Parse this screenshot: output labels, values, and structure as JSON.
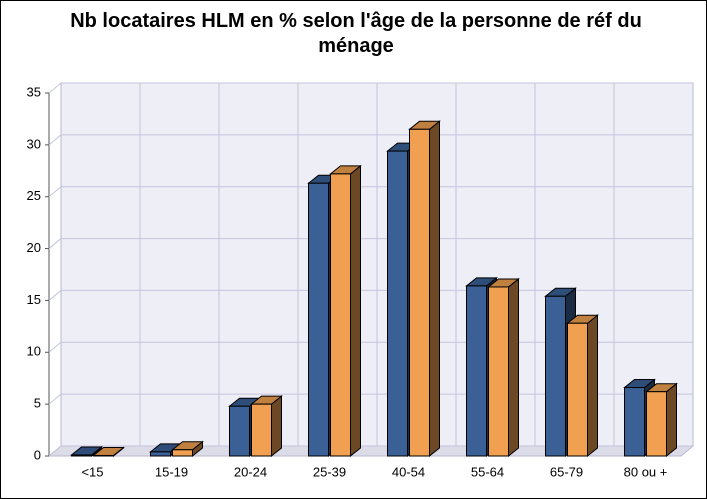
{
  "chart_data": {
    "type": "bar3d",
    "title": "Nb locataires HLM en % selon l'âge de la personne de réf du ménage",
    "categories": [
      "<15",
      "15-19",
      "20-24",
      "25-39",
      "40-54",
      "55-64",
      "65-79",
      "80 ou +"
    ],
    "series": [
      {
        "color": "#3a6096",
        "values": [
          0.1,
          0.4,
          4.8,
          26.3,
          29.4,
          16.4,
          15.4,
          6.6
        ]
      },
      {
        "color": "#f0a050",
        "values": [
          0.05,
          0.6,
          5.0,
          27.2,
          31.5,
          16.3,
          12.8,
          6.2
        ]
      }
    ],
    "ylim": [
      0,
      35
    ],
    "yticks": [
      0,
      5,
      10,
      15,
      20,
      25,
      30,
      35
    ],
    "grid": true
  }
}
